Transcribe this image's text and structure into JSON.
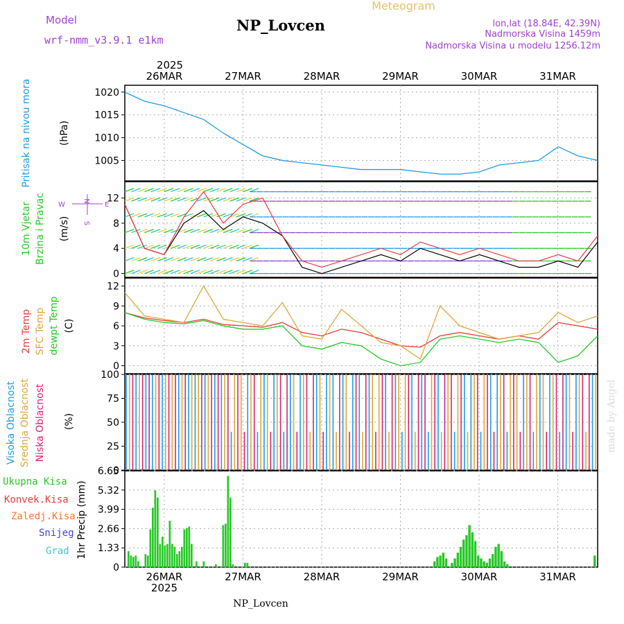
{
  "header": {
    "title": "NP_Lovcen",
    "meteogram_label": "Meteogram",
    "model_label": "Model",
    "model_name": "wrf-nmm_v3.9.1 e1km",
    "coords": "lon,lat (18.84E, 42.39N)",
    "elevation": "Nadmorska Visina 1459m",
    "model_elevation": "Nadmorska Visina u modelu 1256.12m",
    "footer_title": "NP_Lovcen",
    "watermark": "made by Angel",
    "year_top": "2025",
    "year_bottom": "2025"
  },
  "colors": {
    "pressure": "#1e9be6",
    "temp2m": "#e83c3c",
    "sfc_temp": "#e0a63a",
    "dewpoint": "#26c926",
    "cloud_high": "#1e9be6",
    "cloud_mid": "#e0a63a",
    "cloud_low": "#d6246e",
    "precip_total": "#26c926",
    "precip_conv": "#e83c3c",
    "title_gold": "#e8c06a",
    "info_purple": "#a040d0",
    "wind_speed": "#000000",
    "wind_gust": "#e83c3c"
  },
  "chart_data": [
    {
      "type": "line",
      "panel": "pressure",
      "ylabel_main": "Pritisak na nivou mora",
      "unit": "(hPa)",
      "yticks": [
        "1020",
        "1015",
        "1010",
        "1005"
      ],
      "ylim": [
        1000.5,
        1021.5
      ],
      "x_ticks": [
        "26MAR",
        "27MAR",
        "28MAR",
        "29MAR",
        "30MAR",
        "31MAR"
      ],
      "x": [
        0,
        6,
        12,
        18,
        24,
        30,
        36,
        42,
        48,
        54,
        60,
        66,
        72,
        78,
        84,
        90,
        96,
        102,
        108,
        114,
        120,
        126,
        132,
        138,
        144
      ],
      "series": [
        {
          "values": [
            1020,
            1018,
            1017,
            1015.5,
            1014,
            1011,
            1008.5,
            1006,
            1005,
            1004.5,
            1004,
            1003.5,
            1003,
            1003,
            1003,
            1002.5,
            1002,
            1002,
            1002.5,
            1004,
            1004.5,
            1005,
            1008,
            1006,
            1005
          ]
        }
      ]
    },
    {
      "type": "line",
      "panel": "wind",
      "ylabel_main": "10m Vjetar",
      "ylabel_sub": "Brzina i Pravac",
      "unit": "(m/s)",
      "yticks": [
        "12",
        "8",
        "4",
        "0"
      ],
      "ylim": [
        -0.6,
        14.6
      ],
      "compass": {
        "north": "N",
        "south": "S",
        "west": "W",
        "east": "E"
      },
      "x": [
        0,
        6,
        12,
        18,
        24,
        30,
        36,
        42,
        48,
        54,
        60,
        66,
        72,
        78,
        84,
        90,
        96,
        102,
        108,
        114,
        120,
        126,
        132,
        138,
        144
      ],
      "series": [
        {
          "values": [
            11,
            4,
            3,
            8,
            10,
            7,
            9,
            8,
            6,
            1,
            0,
            1,
            2,
            3,
            2,
            4,
            3,
            2,
            3,
            2,
            1,
            1,
            2,
            1,
            5
          ]
        },
        {
          "values": [
            11,
            4,
            3,
            9,
            13,
            8,
            11,
            12,
            6,
            2,
            1,
            2,
            3,
            4,
            3,
            5,
            4,
            3,
            4,
            3,
            2,
            2,
            3,
            2,
            6
          ]
        }
      ]
    },
    {
      "type": "line",
      "panel": "temperature",
      "ylabel_1": "2m Temp",
      "ylabel_2": "SFC Temp",
      "ylabel_3": "dewpt Temp",
      "unit": "(C)",
      "yticks": [
        "12",
        "9",
        "6",
        "3",
        "0"
      ],
      "ylim": [
        -1.2,
        13.2
      ],
      "x": [
        0,
        6,
        12,
        18,
        24,
        30,
        36,
        42,
        48,
        54,
        60,
        66,
        72,
        78,
        84,
        90,
        96,
        102,
        108,
        114,
        120,
        126,
        132,
        138,
        144
      ],
      "series": [
        {
          "name": "2m Temp",
          "values": [
            8,
            7.2,
            6.8,
            6.5,
            7,
            6.2,
            6,
            5.8,
            6.5,
            5,
            4.5,
            5.5,
            5,
            4,
            3,
            2.8,
            4.5,
            5,
            4.5,
            4,
            4.5,
            4,
            6.5,
            6,
            5.5
          ]
        },
        {
          "name": "SFC Temp",
          "values": [
            11,
            7.5,
            7,
            6.5,
            12,
            7,
            6.5,
            6,
            9.5,
            4.5,
            4,
            8.5,
            6,
            3.5,
            3,
            1,
            9,
            6,
            5,
            4,
            4.5,
            5,
            8,
            6.5,
            7.5
          ]
        },
        {
          "name": "dewpt Temp",
          "values": [
            8,
            7,
            6.5,
            6.3,
            6.8,
            6,
            5.5,
            5.5,
            6,
            3,
            2.5,
            3.5,
            3,
            1,
            0,
            0.5,
            4,
            4.5,
            4,
            3.5,
            4,
            3.5,
            0.5,
            1.5,
            4.5
          ]
        }
      ]
    },
    {
      "type": "bar",
      "panel": "clouds",
      "ylabel_1": "Visoka Oblacnost",
      "ylabel_2": "Srednja Oblacnost",
      "ylabel_3": "Niska Oblacnost",
      "unit": "(%)",
      "yticks": [
        "100",
        "75",
        "50",
        "25",
        "0"
      ],
      "ylim": [
        0,
        100
      ]
    },
    {
      "type": "bar",
      "panel": "precip",
      "legend": [
        "Ukupna Kisa",
        "Konvek.Kisa",
        "Zaledj.Kisa",
        "Snijeg",
        "Grad"
      ],
      "ylabel": "1hr Precip (mm)",
      "yticks": [
        "6.65",
        "5.32",
        "3.99",
        "2.66",
        "1.33",
        "0"
      ],
      "ylim": [
        0,
        6.65
      ],
      "x": [
        0,
        1,
        2,
        3,
        4,
        5,
        6,
        7,
        8,
        9,
        10,
        11,
        12,
        13,
        14,
        15,
        16,
        17,
        18,
        19,
        20,
        21,
        22,
        23,
        24,
        25,
        26,
        27,
        28,
        29,
        30,
        31,
        32,
        33,
        34,
        35,
        36,
        37,
        38,
        39,
        40,
        41,
        42,
        43,
        44,
        45,
        46,
        47,
        48,
        49,
        50
      ],
      "values": [
        1.1,
        0.8,
        0.7,
        0.8,
        0.4,
        0,
        0,
        0.9,
        0.8,
        2.6,
        4.1,
        5.3,
        4.8,
        1.6,
        2.1,
        1.5,
        1.6,
        3.2,
        1.6,
        1.4,
        0.9,
        1.1,
        1.4,
        2.6,
        2.7,
        2.8,
        1.6,
        0,
        0.4,
        0,
        0,
        0.4,
        0,
        0,
        0,
        0,
        0.2,
        0,
        0,
        2.9,
        3.0,
        6.3,
        4.8,
        0.2,
        0,
        0,
        0,
        0,
        0.3,
        0.3,
        0
      ]
    }
  ]
}
